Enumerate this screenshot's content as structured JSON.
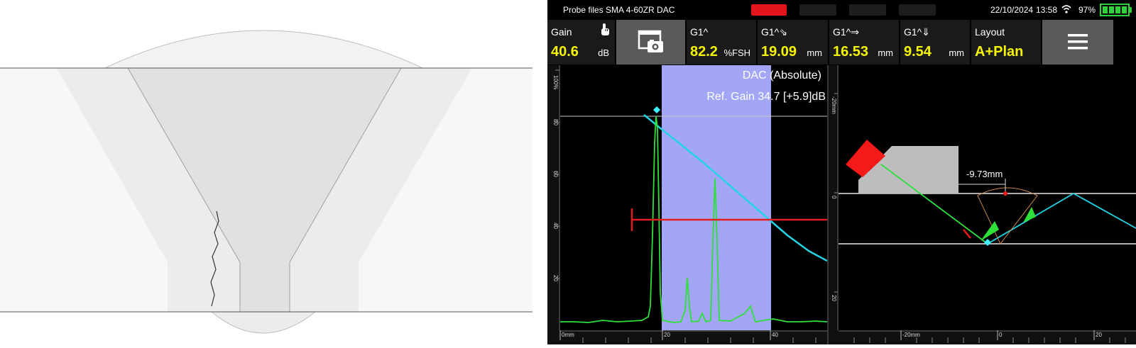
{
  "device": {
    "file_title": "Probe files SMA 4-60ZR DAC",
    "date": "22/10/2024",
    "time": "13:58",
    "battery": "97%",
    "params": [
      {
        "label": "Gain",
        "value": "40.6",
        "unit": "dB"
      },
      {
        "label": "G1^",
        "value": "82.2",
        "unit": "%FSH"
      },
      {
        "label": "G1^⇘",
        "value": "19.09",
        "unit": "mm"
      },
      {
        "label": "G1^⇒",
        "value": "16.53",
        "unit": "mm"
      },
      {
        "label": "G1^⇓",
        "value": "9.54",
        "unit": "mm"
      },
      {
        "label": "Layout",
        "value": "A+Plan",
        "unit": ""
      }
    ],
    "ascan": {
      "mode": "DAC (Absolute)",
      "ref_gain": "Ref. Gain 34.7 [+5.9]dB",
      "y_ticks": [
        "100%",
        "80",
        "60",
        "40",
        "20"
      ],
      "x_ticks": [
        "0mm",
        "20",
        "40"
      ]
    },
    "plan": {
      "offset_label": "-9.73mm",
      "y_ticks": [
        "-20mm",
        "0",
        "20"
      ],
      "x_ticks": [
        "-20mm",
        "0",
        "20"
      ]
    }
  }
}
